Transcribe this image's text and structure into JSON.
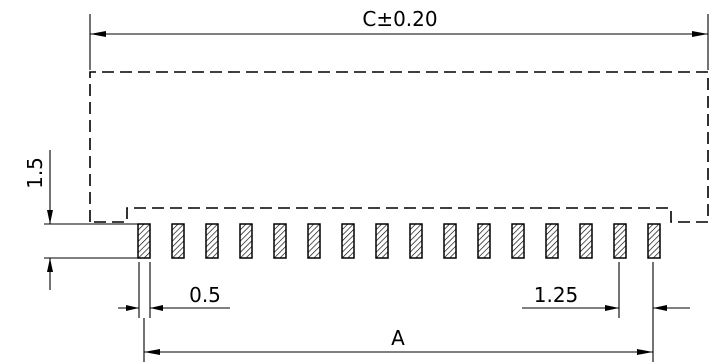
{
  "dimensions": {
    "overall_width": "C±0.20",
    "pin_span": "A",
    "pad_width": "0.5",
    "pitch": "1.25",
    "height": "1.5"
  },
  "pads": {
    "count": 16
  }
}
